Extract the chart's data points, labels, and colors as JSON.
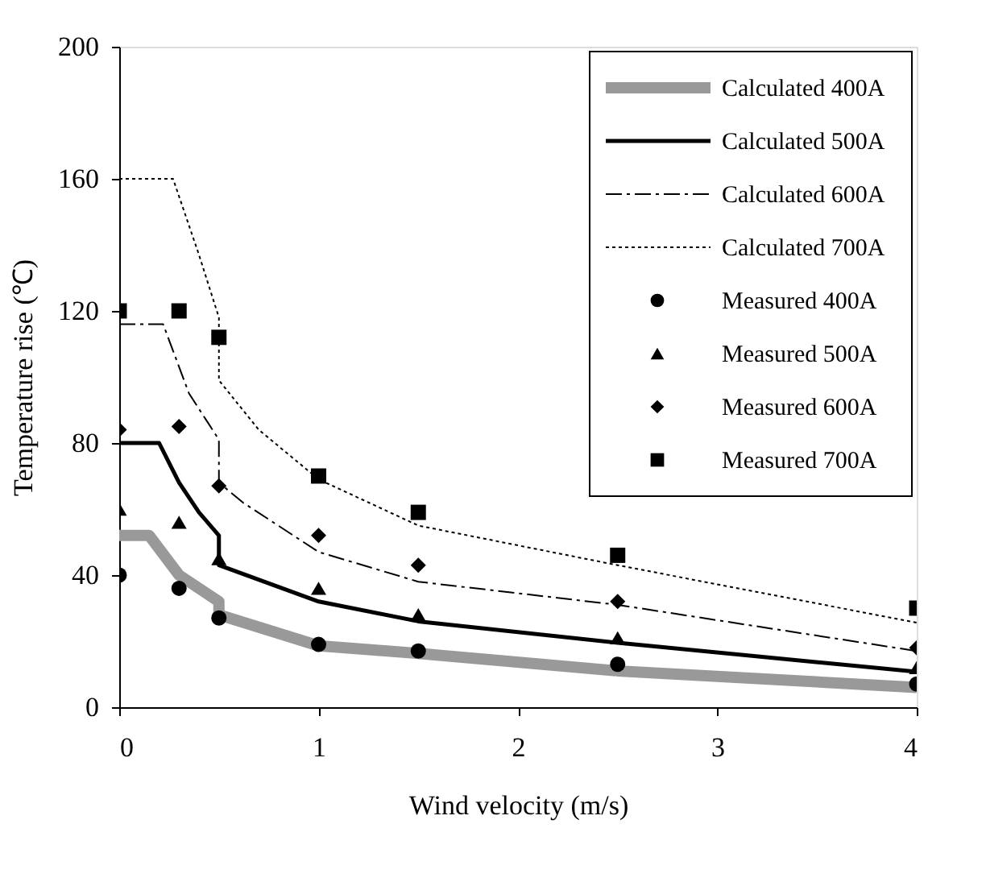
{
  "chart_data": {
    "type": "line",
    "xlabel": "Wind velocity (m/s)",
    "ylabel": "Temperature rise (℃)",
    "xlim": [
      0,
      4
    ],
    "xticks": [
      0,
      1,
      2,
      3,
      4
    ],
    "ylim": [
      0,
      200
    ],
    "yticks": [
      0,
      40,
      80,
      120,
      160,
      200
    ],
    "grid": false,
    "legend": "top right",
    "series": [
      {
        "name": "Calculated 400A",
        "type": "line",
        "color": "#999999",
        "line_style": "solid",
        "x": [
          0,
          0.15,
          0.3,
          0.5,
          0.5,
          1,
          1.5,
          2.5,
          4
        ],
        "values": [
          52,
          52,
          40,
          32,
          28,
          18.6,
          16.3,
          11,
          6
        ]
      },
      {
        "name": "Calculated 500A",
        "type": "line",
        "color": "#000000",
        "line_style": "solid",
        "x": [
          0,
          0.2,
          0.3,
          0.4,
          0.5,
          0.5,
          1,
          1.5,
          2.5,
          4
        ],
        "values": [
          80,
          80,
          68,
          59,
          52,
          43,
          32,
          26,
          19.5,
          10.7
        ]
      },
      {
        "name": "Calculated 600A",
        "type": "line",
        "color": "#000000",
        "line_style": "dashed",
        "x": [
          0,
          0.22,
          0.35,
          0.5,
          0.5,
          0.62,
          1,
          1.5,
          2.5,
          4
        ],
        "values": [
          116,
          116,
          95,
          81,
          68,
          62,
          47,
          38,
          31,
          17
        ]
      },
      {
        "name": "Calculated 700A",
        "type": "line",
        "color": "#000000",
        "line_style": "dotted",
        "x": [
          0,
          0.27,
          0.4,
          0.5,
          0.5,
          0.7,
          1,
          1.5,
          2.5,
          4
        ],
        "values": [
          160,
          160,
          137,
          118,
          99,
          84,
          69,
          55,
          43,
          25.6
        ]
      },
      {
        "name": "Measured 400A",
        "type": "scatter",
        "color": "#000000",
        "marker": "circle",
        "x": [
          0,
          0.3,
          0.5,
          1,
          1.5,
          2.5,
          4
        ],
        "values": [
          40,
          36,
          27,
          19,
          17,
          13,
          7
        ]
      },
      {
        "name": "Measured 500A",
        "type": "scatter",
        "color": "#000000",
        "marker": "triangle",
        "x": [
          0,
          0.3,
          0.5,
          1,
          1.5,
          2.5,
          4
        ],
        "values": [
          60,
          56,
          45,
          36,
          28,
          21,
          12
        ]
      },
      {
        "name": "Measured 600A",
        "type": "scatter",
        "color": "#000000",
        "marker": "diamond",
        "x": [
          0,
          0.3,
          0.5,
          1,
          1.5,
          2.5,
          4
        ],
        "values": [
          84,
          85,
          67,
          52,
          43,
          32,
          18
        ]
      },
      {
        "name": "Measured 700A",
        "type": "scatter",
        "color": "#000000",
        "marker": "square",
        "x": [
          0,
          0.3,
          0.5,
          1,
          1.5,
          2.5,
          4
        ],
        "values": [
          120,
          120,
          112,
          70,
          59,
          46,
          30
        ]
      }
    ]
  }
}
